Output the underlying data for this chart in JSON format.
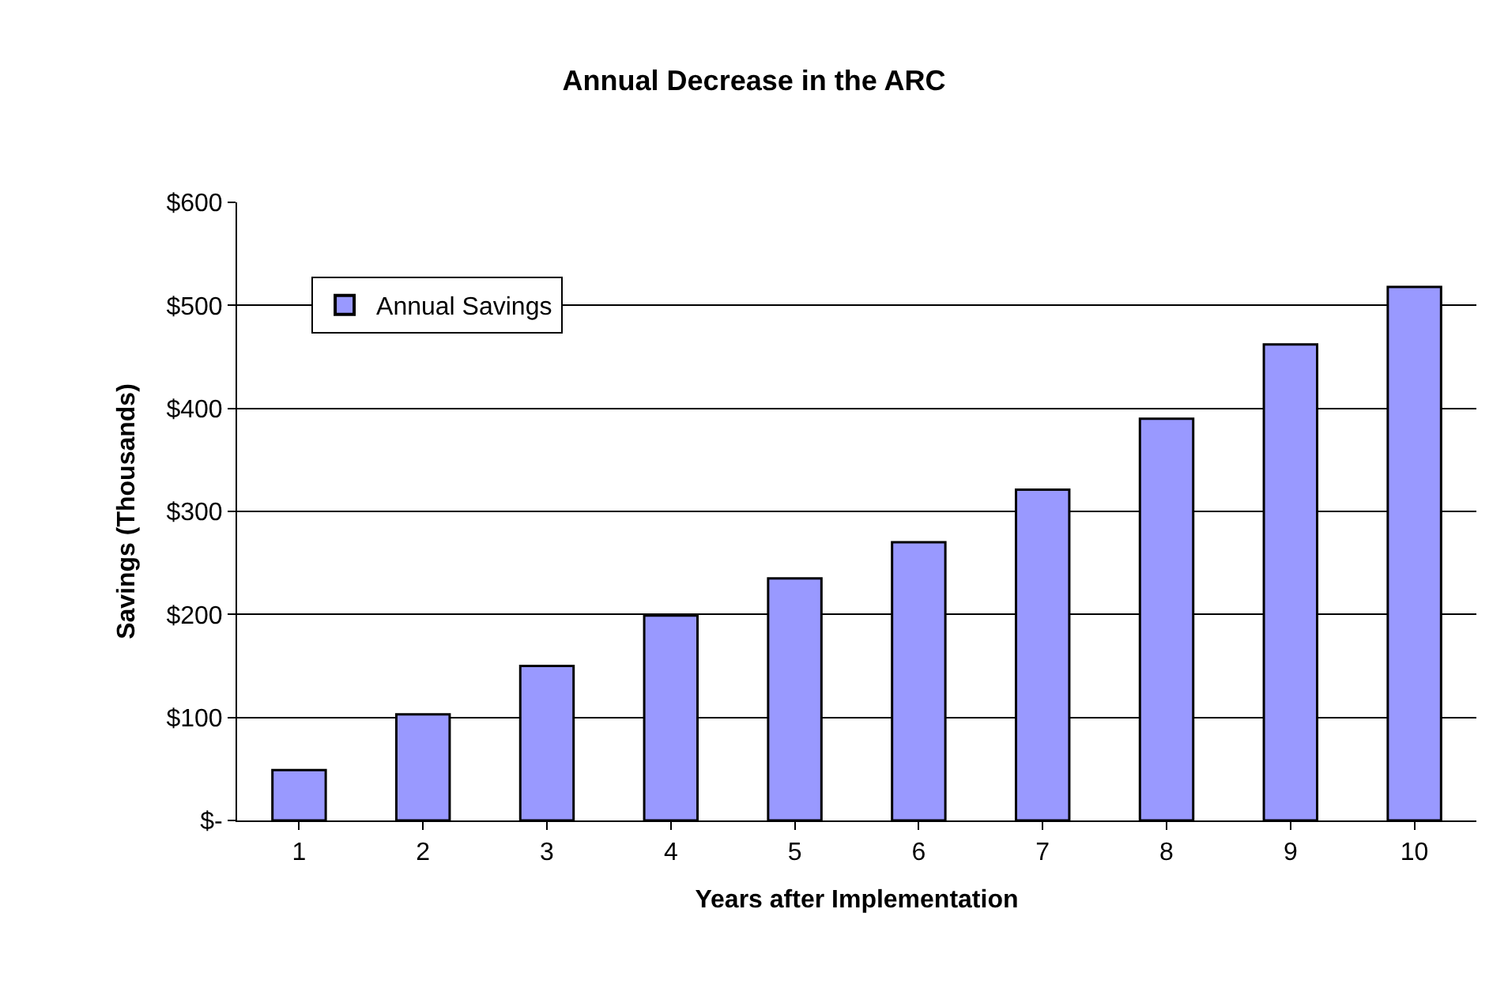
{
  "chart_data": {
    "type": "bar",
    "title": "Annual Decrease in the ARC",
    "xlabel": "Years after Implementation",
    "ylabel": "Savings (Thousands)",
    "categories": [
      "1",
      "2",
      "3",
      "4",
      "5",
      "6",
      "7",
      "8",
      "9",
      "10"
    ],
    "series": [
      {
        "name": "Annual Savings",
        "color": "#9999ff",
        "values": [
          49,
          103,
          150,
          199,
          235,
          270,
          321,
          390,
          462,
          518
        ]
      }
    ],
    "ylim": [
      0,
      600
    ],
    "yticks": [
      {
        "value": 0,
        "label": "$-"
      },
      {
        "value": 100,
        "label": "$100"
      },
      {
        "value": 200,
        "label": "$200"
      },
      {
        "value": 300,
        "label": "$300"
      },
      {
        "value": 400,
        "label": "$400"
      },
      {
        "value": 500,
        "label": "$500"
      },
      {
        "value": 600,
        "label": "$600"
      }
    ],
    "grid": "y",
    "legend": "top left"
  }
}
